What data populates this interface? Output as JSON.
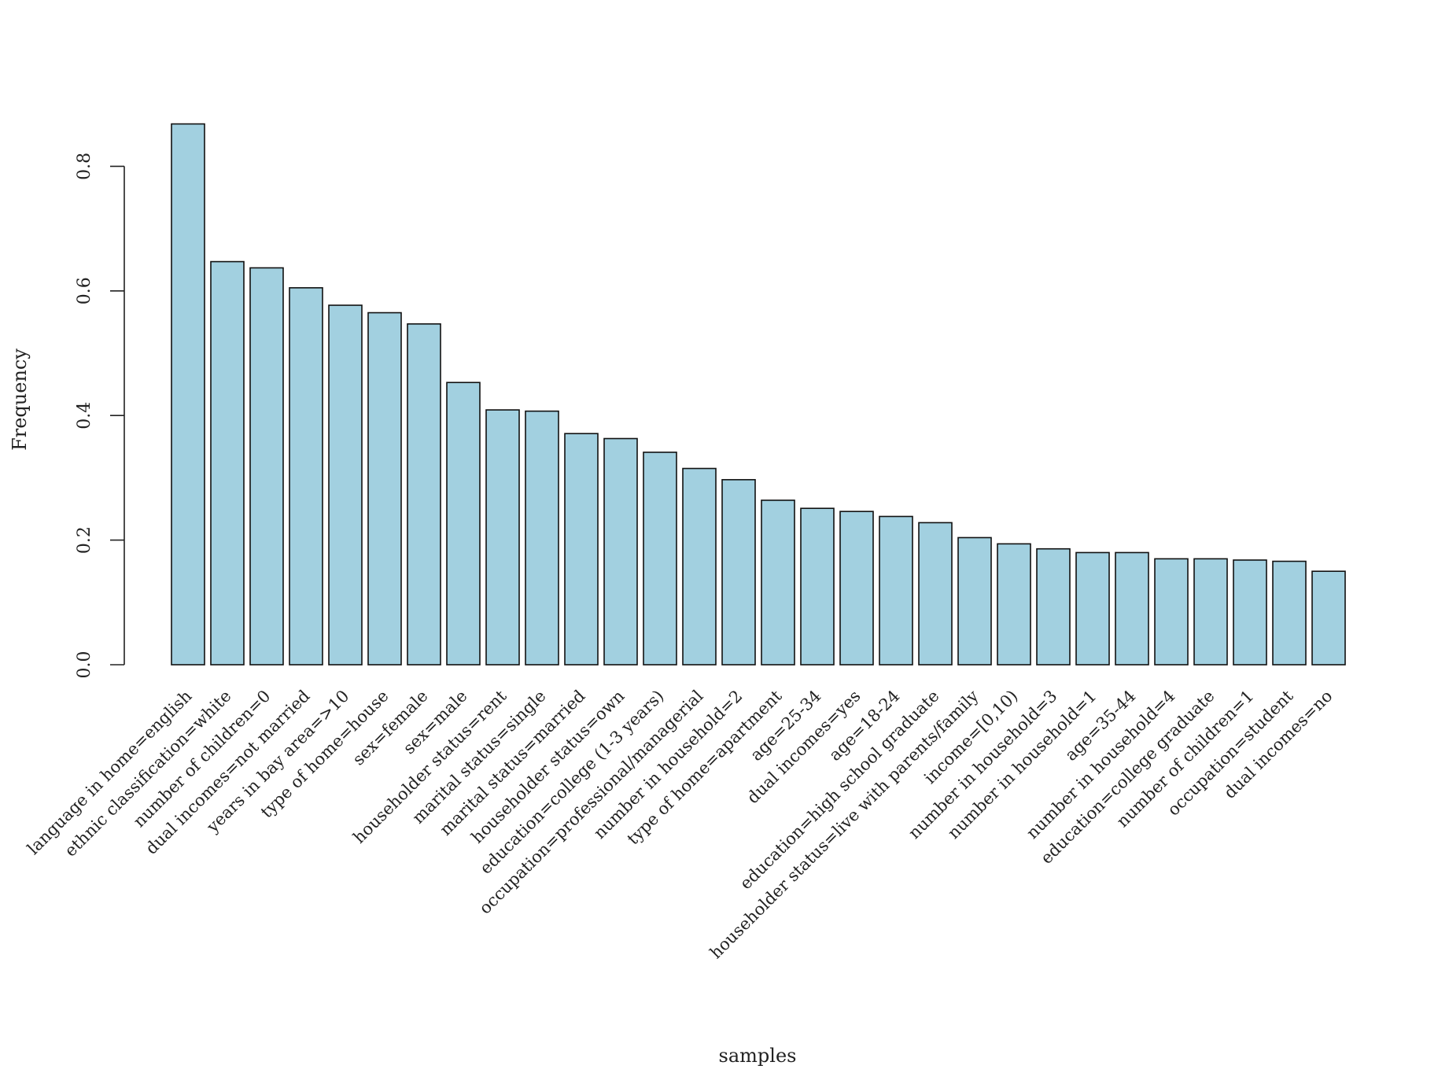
{
  "chart_data": {
    "type": "bar",
    "xlabel": "samples",
    "ylabel": "Frequency",
    "ylim": [
      0,
      0.9
    ],
    "yticks": [
      0.0,
      0.2,
      0.4,
      0.6,
      0.8
    ],
    "ytick_labels": [
      "0.0",
      "0.2",
      "0.4",
      "0.6",
      "0.8"
    ],
    "grid": false,
    "bar_color": "#a2d0e0",
    "bar_edge_color": "#111111",
    "categories": [
      "language in home=english",
      "ethnic classification=white",
      "number of children=0",
      "dual incomes=not married",
      "years in bay area=>10",
      "type of home=house",
      "sex=female",
      "sex=male",
      "householder status=rent",
      "marital status=single",
      "marital status=married",
      "householder status=own",
      "education=college (1-3 years)",
      "occupation=professional/managerial",
      "number in household=2",
      "type of home=apartment",
      "age=25-34",
      "dual incomes=yes",
      "age=18-24",
      "education=high school graduate",
      "householder status=live with parents/family",
      "income=[0,10)",
      "number in household=3",
      "number in household=1",
      "age=35-44",
      "number in household=4",
      "education=college graduate",
      "number of children=1",
      "occupation=student",
      "dual incomes=no"
    ],
    "values": [
      0.868,
      0.647,
      0.637,
      0.605,
      0.577,
      0.565,
      0.547,
      0.453,
      0.409,
      0.407,
      0.371,
      0.363,
      0.341,
      0.315,
      0.297,
      0.264,
      0.251,
      0.246,
      0.238,
      0.228,
      0.204,
      0.194,
      0.186,
      0.18,
      0.18,
      0.17,
      0.17,
      0.168,
      0.166,
      0.15
    ]
  }
}
